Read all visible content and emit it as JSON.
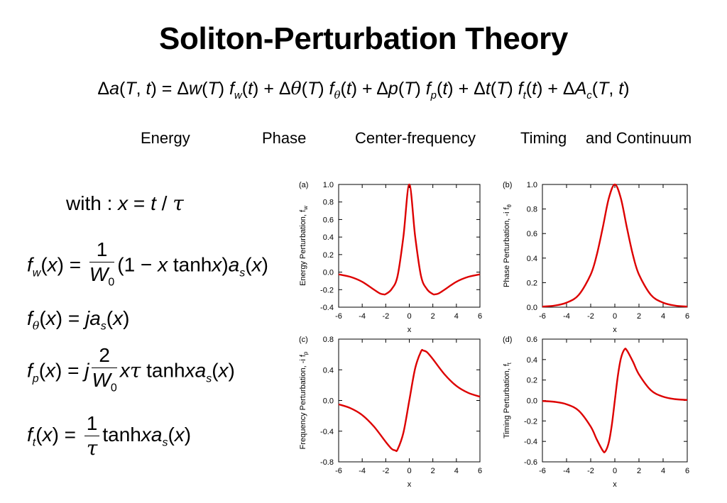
{
  "slide": {
    "title": "Soliton-Perturbation Theory",
    "categories": {
      "energy": "Energy",
      "phase": "Phase",
      "center_frequency": "Center-frequency",
      "timing": "Timing",
      "continuum": "and Continuum"
    },
    "with_label": "with :"
  },
  "chart_data": [
    {
      "type": "line",
      "panel_label": "(a)",
      "xlabel": "x",
      "ylabel": "Energy Perturbation,  f",
      "ylabel_sub": "w",
      "xlim": [
        -6,
        6
      ],
      "ylim": [
        -0.4,
        1.0
      ],
      "xticks": [
        "-6",
        "-4",
        "-2",
        "0",
        "2",
        "4",
        "6"
      ],
      "yticks": [
        "-0.4",
        "-0.2",
        "0.0",
        "0.2",
        "0.4",
        "0.6",
        "0.8",
        "1.0"
      ],
      "series": [
        {
          "x": [
            -6,
            -5,
            -4,
            -3,
            -2.5,
            -2.2,
            -2,
            -1.5,
            -1,
            -0.5,
            0,
            0.5,
            1,
            1.5,
            2,
            2.2,
            2.5,
            3,
            4,
            5,
            6
          ],
          "y": [
            -0.025,
            -0.054,
            -0.11,
            -0.2,
            -0.243,
            -0.253,
            -0.25,
            -0.194,
            -0.047,
            0.405,
            1.0,
            0.405,
            -0.047,
            -0.194,
            -0.25,
            -0.253,
            -0.243,
            -0.2,
            -0.11,
            -0.054,
            -0.025
          ]
        }
      ]
    },
    {
      "type": "line",
      "panel_label": "(b)",
      "xlabel": "x",
      "ylabel": "Phase Perturbation,  -i f",
      "ylabel_sub": "θ",
      "xlim": [
        -6,
        6
      ],
      "ylim": [
        0.0,
        1.0
      ],
      "xticks": [
        "-6",
        "-4",
        "-2",
        "0",
        "2",
        "4",
        "6"
      ],
      "yticks": [
        "0.0",
        "0.2",
        "0.4",
        "0.6",
        "0.8",
        "1.0"
      ],
      "series": [
        {
          "x": [
            -6,
            -5,
            -4,
            -3,
            -2,
            -1.5,
            -1,
            -0.5,
            0,
            0.5,
            1,
            1.5,
            2,
            3,
            4,
            5,
            6
          ],
          "y": [
            0.005,
            0.013,
            0.037,
            0.099,
            0.266,
            0.425,
            0.648,
            0.887,
            1.0,
            0.887,
            0.648,
            0.425,
            0.266,
            0.099,
            0.037,
            0.013,
            0.005
          ]
        }
      ]
    },
    {
      "type": "line",
      "panel_label": "(c)",
      "xlabel": "x",
      "ylabel": "Frequency Perturbation,  -i f",
      "ylabel_sub": "p",
      "xlim": [
        -6,
        6
      ],
      "ylim": [
        -0.8,
        0.8
      ],
      "xticks": [
        "-6",
        "-4",
        "-2",
        "0",
        "2",
        "4",
        "6"
      ],
      "yticks": [
        "-0.8",
        "-0.4",
        "0.0",
        "0.4",
        "0.8"
      ],
      "series": [
        {
          "x": [
            -6,
            -5,
            -4,
            -3,
            -2,
            -1.5,
            -1.2,
            -1,
            -0.5,
            0,
            0.5,
            1,
            1.2,
            1.5,
            2,
            3,
            4,
            5,
            6
          ],
          "y": [
            -0.05,
            -0.1,
            -0.19,
            -0.34,
            -0.54,
            -0.63,
            -0.65,
            -0.64,
            -0.42,
            0.0,
            0.42,
            0.64,
            0.65,
            0.63,
            0.54,
            0.34,
            0.19,
            0.1,
            0.05
          ]
        }
      ]
    },
    {
      "type": "line",
      "panel_label": "(d)",
      "xlabel": "x",
      "ylabel": "Timing Perturbation,  f",
      "ylabel_sub": "t",
      "xlim": [
        -6,
        6
      ],
      "ylim": [
        -0.6,
        0.6
      ],
      "xticks": [
        "-6",
        "-4",
        "-2",
        "0",
        "2",
        "4",
        "6"
      ],
      "yticks": [
        "-0.6",
        "-0.4",
        "-0.2",
        "0.0",
        "0.2",
        "0.4",
        "0.6"
      ],
      "series": [
        {
          "x": [
            -6,
            -5,
            -4,
            -3,
            -2,
            -1.5,
            -1,
            -0.8,
            -0.5,
            -0.25,
            0,
            0.25,
            0.5,
            0.8,
            1,
            1.5,
            2,
            3,
            4,
            5,
            6
          ],
          "y": [
            -0.005,
            -0.013,
            -0.037,
            -0.099,
            -0.255,
            -0.38,
            -0.49,
            -0.5,
            -0.41,
            -0.24,
            0.0,
            0.24,
            0.41,
            0.5,
            0.49,
            0.38,
            0.255,
            0.099,
            0.037,
            0.013,
            0.005
          ]
        }
      ]
    }
  ]
}
